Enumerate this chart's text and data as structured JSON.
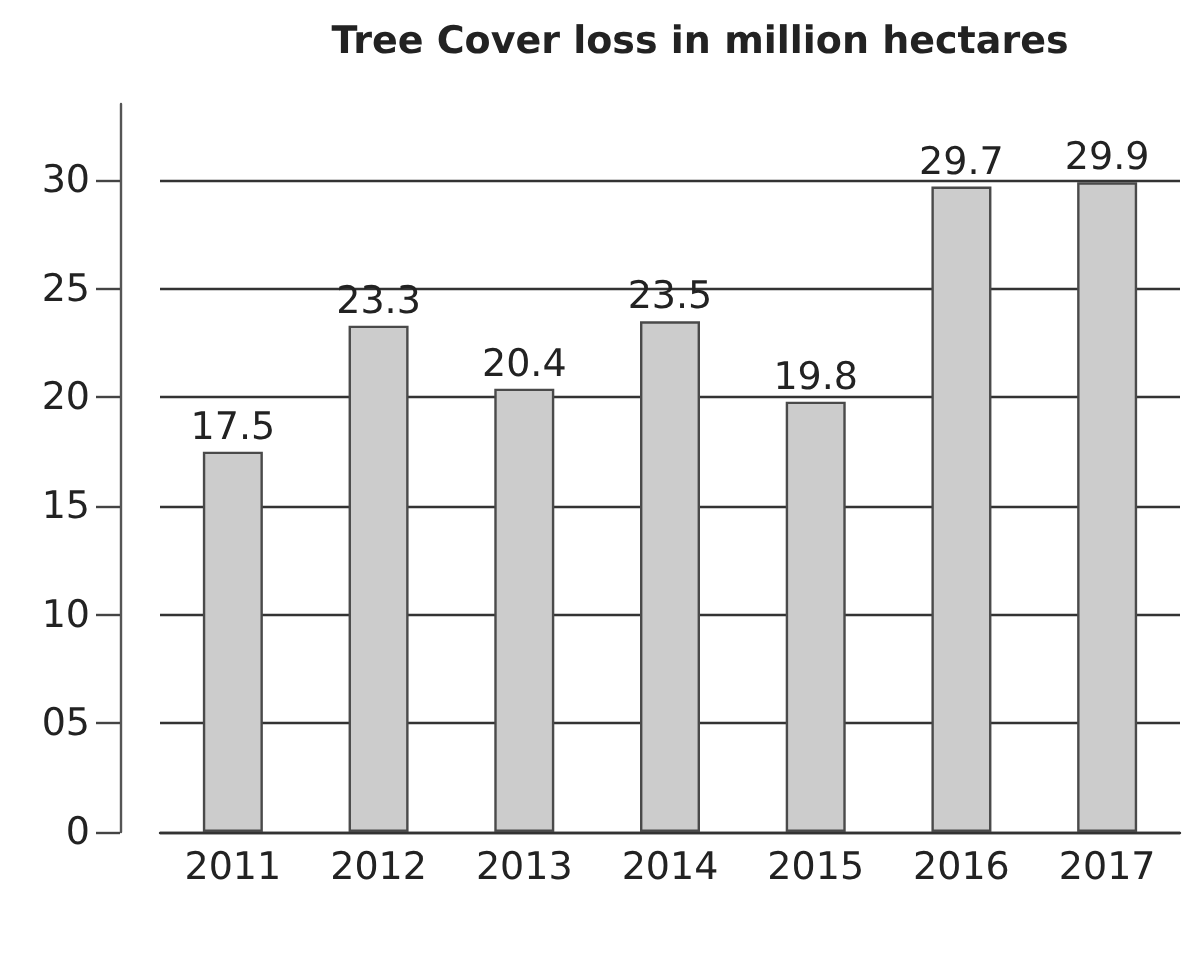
{
  "chart_data": {
    "type": "bar",
    "title": "Tree Cover loss in million hectares",
    "categories": [
      "2011",
      "2012",
      "2013",
      "2014",
      "2015",
      "2016",
      "2017"
    ],
    "values": [
      17.5,
      23.3,
      20.4,
      23.5,
      19.8,
      29.7,
      29.9
    ],
    "color": "#cccccc",
    "ylim": [
      0,
      33.5
    ],
    "yticks": [
      0,
      {
        "value": 5,
        "label": "05"
      },
      10,
      15,
      20,
      25,
      30
    ],
    "grid": "y",
    "data_labels": true
  }
}
